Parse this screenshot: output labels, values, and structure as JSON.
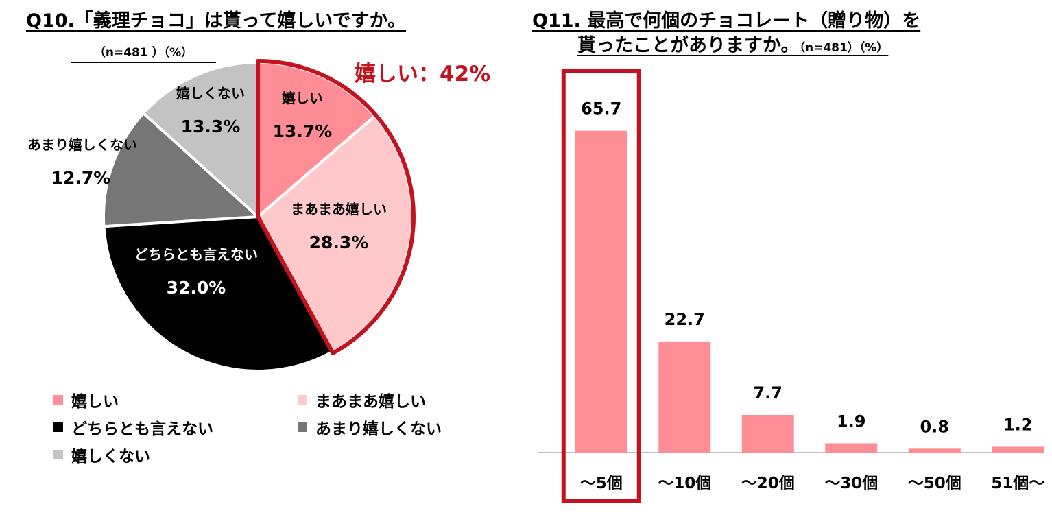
{
  "q10": {
    "title": "Q10.「義理チョコ」は貰って嬉しいですか。",
    "subtitle": "（n=481 ）（%）",
    "callout": "嬉しい：42%"
  },
  "q11": {
    "title_line1": "Q11. 最高で何個のチョコレート（贈り物）を",
    "title_line2": "貰ったことがありますか。",
    "title_note": "（n=481）（%）"
  },
  "colors": {
    "ureshii": "#ff8d95",
    "maamaa": "#ffc9cc",
    "dochira": "#000000",
    "amari": "#767676",
    "nai": "#c3c3c3",
    "highlight": "#c4121f",
    "bar": "#ff8d95"
  },
  "chart_data": [
    {
      "type": "pie",
      "title": "Q10.「義理チョコ」は貰って嬉しいですか。",
      "slices": [
        {
          "label": "嬉しい",
          "value": 13.7,
          "pct_text": "13.7%",
          "color": "#ff8d95"
        },
        {
          "label": "まあまあ嬉しい",
          "value": 28.3,
          "pct_text": "28.3%",
          "color": "#ffc9cc"
        },
        {
          "label": "どちらとも言えない",
          "value": 32.0,
          "pct_text": "32.0%",
          "color": "#000000"
        },
        {
          "label": "あまり嬉しくない",
          "value": 12.7,
          "pct_text": "12.7%",
          "color": "#767676"
        },
        {
          "label": "嬉しくない",
          "value": 13.3,
          "pct_text": "13.3%",
          "color": "#c3c3c3"
        }
      ],
      "legend": [
        "嬉しい",
        "まあまあ嬉しい",
        "どちらとも言えない",
        "あまり嬉しくない",
        "嬉しくない"
      ]
    },
    {
      "type": "bar",
      "title": "Q11. 最高で何個のチョコレート（贈り物）を貰ったことがありますか。",
      "categories": [
        "～5個",
        "～10個",
        "～20個",
        "～30個",
        "～50個",
        "51個～"
      ],
      "values": [
        65.7,
        22.7,
        7.7,
        1.9,
        0.8,
        1.2
      ],
      "value_labels": [
        "65.7",
        "22.7",
        "7.7",
        "1.9",
        "0.8",
        "1.2"
      ],
      "ylim": [
        0,
        70
      ],
      "highlighted_category": "～5個"
    }
  ]
}
